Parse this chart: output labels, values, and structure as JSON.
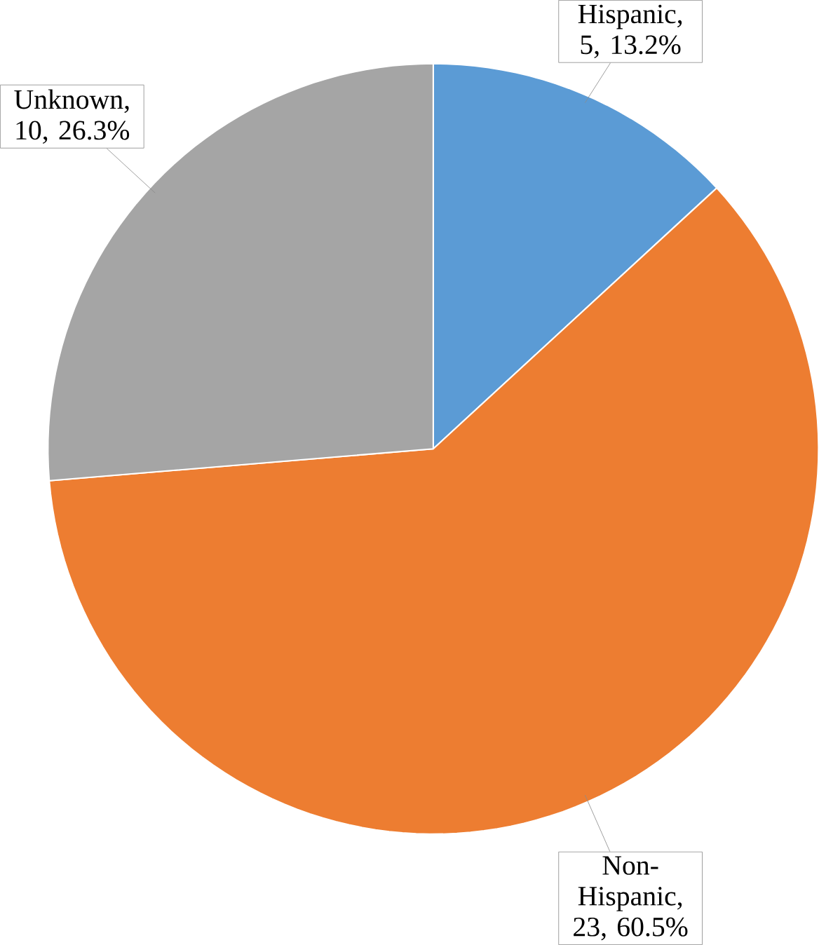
{
  "chart_data": {
    "type": "pie",
    "categories": [
      "Hispanic",
      "Non-Hispanic",
      "Unknown"
    ],
    "values": [
      5,
      23,
      10
    ],
    "value_labels": [
      ", 5, 13.2%",
      ", 23, 60.5%",
      ", 10, 26.3%"
    ],
    "colors": [
      "#5b9bd5",
      "#ed7d31",
      "#a5a5a5"
    ]
  }
}
